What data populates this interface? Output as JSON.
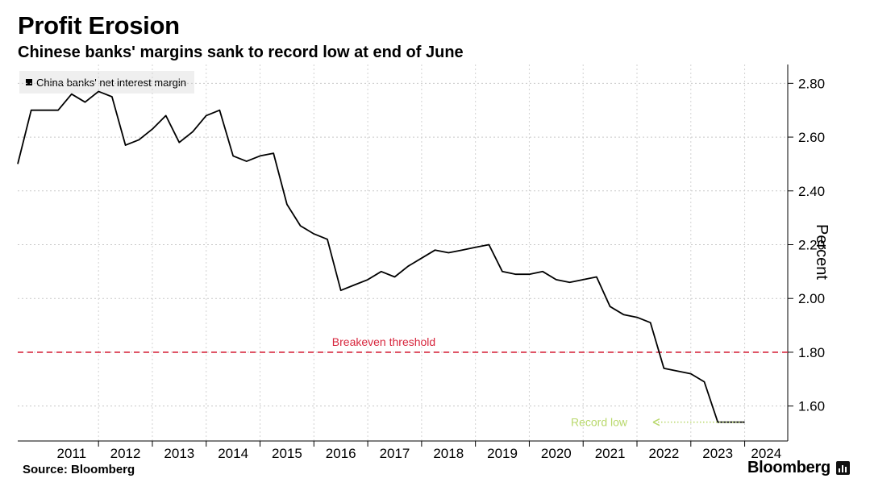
{
  "title": "Profit Erosion",
  "subtitle": "Chinese banks' margins sank to record low at end of June",
  "source": "Source: Bloomberg",
  "brand": "Bloomberg",
  "chart_data": {
    "type": "line",
    "ylabel": "Percent",
    "xlabel": "",
    "ylim": [
      1.47,
      2.87
    ],
    "xlim": [
      2010.5,
      2024.8
    ],
    "yticks": [
      1.6,
      1.8,
      2.0,
      2.2,
      2.4,
      2.6,
      2.8
    ],
    "ytick_labels": [
      "1.60",
      "1.80",
      "2.00",
      "2.20",
      "2.40",
      "2.60",
      "2.80"
    ],
    "xtick_labels": [
      "2011",
      "2012",
      "2013",
      "2014",
      "2015",
      "2016",
      "2017",
      "2018",
      "2019",
      "2020",
      "2021",
      "2022",
      "2023",
      "2024"
    ],
    "grid": true,
    "legend_position": "top-left",
    "series": [
      {
        "name": "China banks' net interest margin",
        "color": "#000000",
        "x": [
          2010.5,
          2010.75,
          2011.0,
          2011.25,
          2011.5,
          2011.75,
          2012.0,
          2012.25,
          2012.5,
          2012.75,
          2013.0,
          2013.25,
          2013.5,
          2013.75,
          2014.0,
          2014.25,
          2014.5,
          2014.75,
          2015.0,
          2015.25,
          2015.5,
          2015.75,
          2016.0,
          2016.25,
          2016.5,
          2016.75,
          2017.0,
          2017.25,
          2017.5,
          2017.75,
          2018.0,
          2018.25,
          2018.5,
          2018.75,
          2019.0,
          2019.25,
          2019.5,
          2019.75,
          2020.0,
          2020.25,
          2020.5,
          2020.75,
          2021.0,
          2021.25,
          2021.5,
          2021.75,
          2022.0,
          2022.25,
          2022.5,
          2022.75,
          2023.0,
          2023.25,
          2023.5,
          2023.75,
          2024.0
        ],
        "values": [
          2.5,
          2.7,
          2.7,
          2.7,
          2.76,
          2.73,
          2.77,
          2.75,
          2.57,
          2.59,
          2.63,
          2.68,
          2.58,
          2.62,
          2.68,
          2.7,
          2.53,
          2.51,
          2.53,
          2.54,
          2.35,
          2.27,
          2.24,
          2.22,
          2.03,
          2.05,
          2.07,
          2.1,
          2.08,
          2.12,
          2.15,
          2.18,
          2.17,
          2.18,
          2.19,
          2.2,
          2.1,
          2.09,
          2.09,
          2.1,
          2.07,
          2.06,
          2.07,
          2.08,
          1.97,
          1.94,
          1.93,
          1.91,
          1.74,
          1.73,
          1.72,
          1.69,
          1.54,
          1.54,
          1.54
        ]
      }
    ],
    "reference_line": {
      "value": 1.8,
      "label": "Breakeven threshold",
      "color": "#d7263d"
    },
    "annotation": {
      "label": "Record low",
      "color": "#b8d86b",
      "value": 1.54
    }
  }
}
